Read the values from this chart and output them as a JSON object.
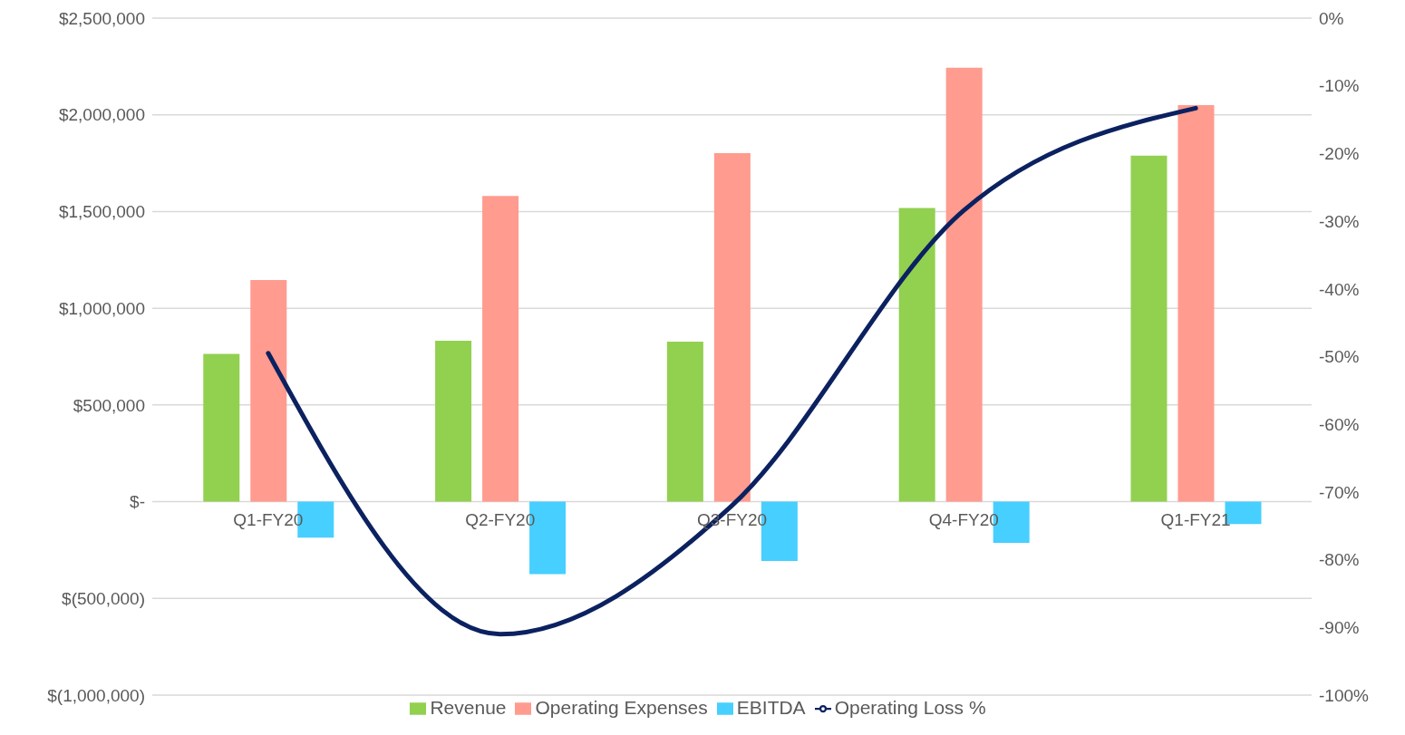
{
  "chart_data": {
    "type": "bar",
    "categories": [
      "Q1-FY20",
      "Q2-FY20",
      "Q3-FY20",
      "Q4-FY20",
      "Q1-FY21"
    ],
    "series": [
      {
        "name": "Revenue",
        "color": "#92d050",
        "values": [
          764000,
          832000,
          827000,
          1518000,
          1789000
        ]
      },
      {
        "name": "Operating Expenses",
        "color": "#ff9b8f",
        "values": [
          1146000,
          1581000,
          1802000,
          2244000,
          2050000
        ]
      },
      {
        "name": "EBITDA",
        "color": "#47cfff",
        "values": [
          -186000,
          -375000,
          -307000,
          -213000,
          -116000
        ]
      },
      {
        "name": "Operating Loss %",
        "type": "line",
        "axis": "y2",
        "color": "#0b2160",
        "values": [
          -49.5,
          -91,
          -72,
          -28.4,
          -13.3
        ]
      }
    ],
    "ylim": [
      -1000000,
      2500000
    ],
    "yticks": [
      {
        "value": -1000000,
        "label": "$(1,000,000)"
      },
      {
        "value": -500000,
        "label": "$(500,000)"
      },
      {
        "value": 0,
        "label": "$-"
      },
      {
        "value": 500000,
        "label": "$500,000"
      },
      {
        "value": 1000000,
        "label": "$1,000,000"
      },
      {
        "value": 1500000,
        "label": "$1,500,000"
      },
      {
        "value": 2000000,
        "label": "$2,000,000"
      },
      {
        "value": 2500000,
        "label": "$2,500,000"
      }
    ],
    "y2lim": [
      -100,
      0
    ],
    "y2ticks": [
      {
        "value": -100,
        "label": "-100%"
      },
      {
        "value": -90,
        "label": "-90%"
      },
      {
        "value": -80,
        "label": "-80%"
      },
      {
        "value": -70,
        "label": "-70%"
      },
      {
        "value": -60,
        "label": "-60%"
      },
      {
        "value": -50,
        "label": "-50%"
      },
      {
        "value": -40,
        "label": "-40%"
      },
      {
        "value": -30,
        "label": "-30%"
      },
      {
        "value": -20,
        "label": "-20%"
      },
      {
        "value": -10,
        "label": "-10%"
      },
      {
        "value": 0,
        "label": "0%"
      }
    ],
    "grid": "y",
    "legend": "bottom",
    "marker": "none",
    "line_style": "solid"
  }
}
